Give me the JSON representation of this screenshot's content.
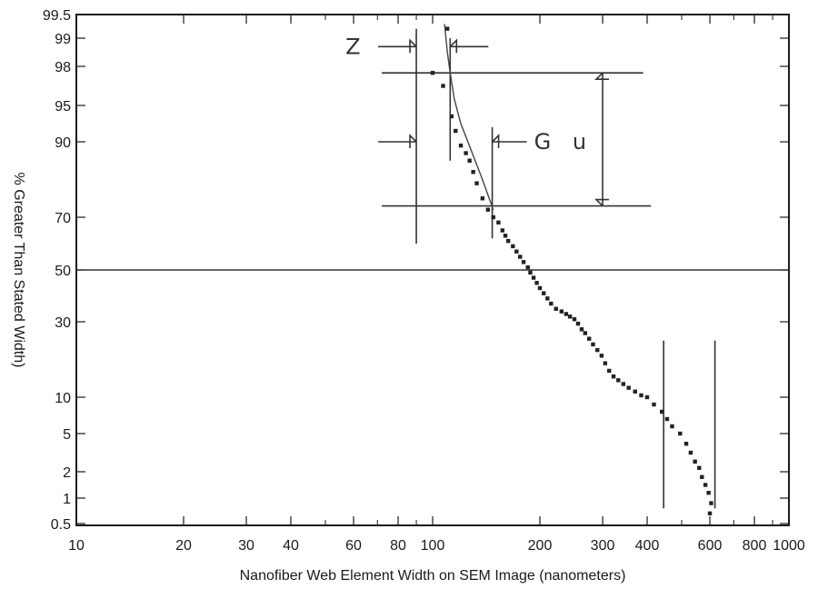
{
  "chart_data": {
    "type": "scatter",
    "title": "",
    "xlabel": "Nanofiber Web Element Width on SEM Image (nanometers)",
    "ylabel": "% Greater Than Stated Width)",
    "x_scale": "log",
    "y_scale": "probability",
    "xlim": [
      10,
      1000
    ],
    "ylim": [
      0.5,
      99.5
    ],
    "x_ticks": [
      10,
      20,
      30,
      40,
      60,
      80,
      100,
      200,
      300,
      400,
      600,
      800,
      1000
    ],
    "x_tick_labels": [
      "10",
      "20",
      "30",
      "40",
      "60",
      "80",
      "100",
      "200",
      "300",
      "400",
      "600",
      "800",
      "1000"
    ],
    "y_ticks": [
      0.5,
      1,
      2,
      5,
      10,
      30,
      50,
      70,
      90,
      95,
      98,
      99,
      99.5
    ],
    "y_tick_labels": [
      "0.5",
      "1",
      "2",
      "5",
      "10",
      "30",
      "50",
      "70",
      "90",
      "95",
      "98",
      "99",
      "99.5"
    ],
    "grid": false,
    "reference_line_y": 50,
    "points": [
      {
        "x": 110,
        "y": 99.2
      },
      {
        "x": 100,
        "y": 97.5
      },
      {
        "x": 107,
        "y": 96.5
      },
      {
        "x": 113,
        "y": 93.5
      },
      {
        "x": 116,
        "y": 91.5
      },
      {
        "x": 120,
        "y": 89
      },
      {
        "x": 124,
        "y": 87
      },
      {
        "x": 127,
        "y": 85
      },
      {
        "x": 130,
        "y": 82
      },
      {
        "x": 133,
        "y": 79
      },
      {
        "x": 138,
        "y": 75
      },
      {
        "x": 143,
        "y": 72
      },
      {
        "x": 148,
        "y": 70
      },
      {
        "x": 153,
        "y": 68
      },
      {
        "x": 157,
        "y": 65
      },
      {
        "x": 160,
        "y": 63
      },
      {
        "x": 163,
        "y": 61
      },
      {
        "x": 168,
        "y": 59
      },
      {
        "x": 172,
        "y": 57
      },
      {
        "x": 176,
        "y": 55
      },
      {
        "x": 180,
        "y": 53
      },
      {
        "x": 185,
        "y": 51
      },
      {
        "x": 188,
        "y": 49
      },
      {
        "x": 192,
        "y": 47
      },
      {
        "x": 196,
        "y": 45
      },
      {
        "x": 200,
        "y": 43
      },
      {
        "x": 205,
        "y": 41
      },
      {
        "x": 210,
        "y": 39
      },
      {
        "x": 215,
        "y": 37
      },
      {
        "x": 222,
        "y": 35
      },
      {
        "x": 230,
        "y": 34
      },
      {
        "x": 237,
        "y": 33
      },
      {
        "x": 243,
        "y": 32
      },
      {
        "x": 250,
        "y": 31
      },
      {
        "x": 256,
        "y": 29.5
      },
      {
        "x": 262,
        "y": 28
      },
      {
        "x": 268,
        "y": 27
      },
      {
        "x": 275,
        "y": 25.5
      },
      {
        "x": 282,
        "y": 24
      },
      {
        "x": 290,
        "y": 22.5
      },
      {
        "x": 298,
        "y": 21
      },
      {
        "x": 305,
        "y": 19
      },
      {
        "x": 313,
        "y": 17
      },
      {
        "x": 322,
        "y": 15.5
      },
      {
        "x": 332,
        "y": 14.5
      },
      {
        "x": 343,
        "y": 13.5
      },
      {
        "x": 355,
        "y": 12.5
      },
      {
        "x": 370,
        "y": 11.5
      },
      {
        "x": 385,
        "y": 10.5
      },
      {
        "x": 400,
        "y": 10
      },
      {
        "x": 418,
        "y": 9
      },
      {
        "x": 440,
        "y": 8
      },
      {
        "x": 455,
        "y": 7
      },
      {
        "x": 470,
        "y": 6
      },
      {
        "x": 495,
        "y": 5
      },
      {
        "x": 515,
        "y": 4.2
      },
      {
        "x": 530,
        "y": 3.5
      },
      {
        "x": 545,
        "y": 2.8
      },
      {
        "x": 560,
        "y": 2.3
      },
      {
        "x": 570,
        "y": 1.8
      },
      {
        "x": 583,
        "y": 1.5
      },
      {
        "x": 595,
        "y": 1.2
      },
      {
        "x": 605,
        "y": 0.9
      },
      {
        "x": 600,
        "y": 0.7
      }
    ],
    "fit_curve": [
      {
        "x": 108,
        "y": 99.3
      },
      {
        "x": 110,
        "y": 98.5
      },
      {
        "x": 112,
        "y": 97.5
      },
      {
        "x": 115,
        "y": 95.5
      },
      {
        "x": 120,
        "y": 92.5
      },
      {
        "x": 128,
        "y": 88
      },
      {
        "x": 138,
        "y": 80
      },
      {
        "x": 148,
        "y": 72
      }
    ],
    "annotations": {
      "labels": [
        "Z",
        "G",
        "u"
      ],
      "reference_lines": [
        {
          "orientation": "vertical",
          "x": 90,
          "y_from": 60,
          "y_to": 99.2
        },
        {
          "orientation": "vertical",
          "x": 112,
          "y_from": 85,
          "y_to": 99
        },
        {
          "orientation": "vertical",
          "x": 147,
          "y_from": 62,
          "y_to": 92
        },
        {
          "orientation": "horizontal",
          "y": 97.5,
          "x_from": 72,
          "x_to": 390
        },
        {
          "orientation": "horizontal",
          "y": 73,
          "x_from": 72,
          "x_to": 410
        },
        {
          "orientation": "vertical",
          "x": 445,
          "y_from": 0.8,
          "y_to": 25
        },
        {
          "orientation": "vertical",
          "x": 620,
          "y_from": 0.8,
          "y_to": 25
        }
      ]
    }
  }
}
